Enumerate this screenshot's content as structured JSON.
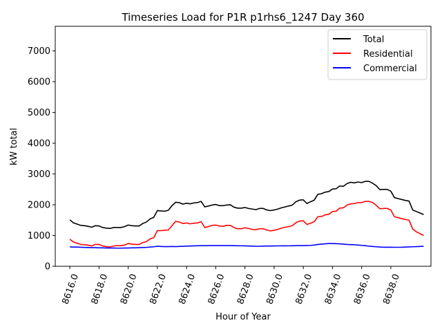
{
  "chart_data": {
    "type": "line",
    "title": "Timeseries Load for P1R p1rhs6_1247  Day 360",
    "xlabel": "Hour of Year",
    "ylabel": "kW total",
    "xlim": [
      8615.0,
      8640.75
    ],
    "ylim": [
      0,
      7800
    ],
    "xticks": [
      8616,
      8618,
      8620,
      8622,
      8624,
      8626,
      8628,
      8630,
      8632,
      8634,
      8636,
      8638
    ],
    "xtick_labels": [
      "8616.0",
      "8618.0",
      "8620.0",
      "8622.0",
      "8624.0",
      "8626.0",
      "8628.0",
      "8630.0",
      "8632.0",
      "8634.0",
      "8636.0",
      "8638.0"
    ],
    "yticks": [
      0,
      1000,
      2000,
      3000,
      4000,
      5000,
      6000,
      7000
    ],
    "ytick_labels": [
      "0",
      "1000",
      "2000",
      "3000",
      "4000",
      "5000",
      "6000",
      "7000"
    ],
    "legend_position": "top-right",
    "x_start": 8616.0,
    "x_step": 0.25,
    "series": [
      {
        "name": "Total",
        "color": "#000000",
        "values": [
          1510,
          1410,
          1370,
          1330,
          1320,
          1300,
          1270,
          1320,
          1310,
          1260,
          1240,
          1230,
          1260,
          1260,
          1260,
          1290,
          1340,
          1320,
          1310,
          1310,
          1390,
          1440,
          1540,
          1590,
          1810,
          1800,
          1790,
          1820,
          1970,
          2080,
          2070,
          2020,
          2050,
          2030,
          2060,
          2070,
          2110,
          1930,
          1960,
          1990,
          2010,
          1970,
          1970,
          1990,
          2000,
          1920,
          1890,
          1890,
          1910,
          1880,
          1860,
          1840,
          1880,
          1880,
          1830,
          1810,
          1830,
          1860,
          1900,
          1930,
          1960,
          1990,
          2100,
          2150,
          2160,
          2040,
          2100,
          2150,
          2340,
          2360,
          2410,
          2430,
          2510,
          2520,
          2610,
          2600,
          2690,
          2730,
          2710,
          2740,
          2720,
          2760,
          2760,
          2700,
          2620,
          2490,
          2500,
          2500,
          2440,
          2230,
          2200,
          2170,
          2140,
          2120,
          1830,
          1780,
          1730,
          1680
        ]
      },
      {
        "name": "Residential",
        "color": "#ff0000",
        "values": [
          880,
          790,
          750,
          710,
          700,
          690,
          660,
          710,
          710,
          660,
          640,
          630,
          660,
          670,
          670,
          690,
          740,
          720,
          710,
          710,
          770,
          800,
          890,
          930,
          1160,
          1160,
          1170,
          1180,
          1320,
          1460,
          1440,
          1390,
          1410,
          1380,
          1400,
          1410,
          1450,
          1260,
          1290,
          1330,
          1340,
          1310,
          1300,
          1330,
          1330,
          1260,
          1220,
          1220,
          1250,
          1230,
          1200,
          1190,
          1220,
          1220,
          1180,
          1150,
          1170,
          1200,
          1240,
          1270,
          1290,
          1320,
          1420,
          1470,
          1480,
          1360,
          1400,
          1450,
          1610,
          1620,
          1670,
          1690,
          1780,
          1790,
          1890,
          1900,
          1990,
          2030,
          2040,
          2070,
          2070,
          2110,
          2110,
          2070,
          1980,
          1870,
          1880,
          1880,
          1830,
          1610,
          1580,
          1550,
          1520,
          1500,
          1210,
          1120,
          1060,
          1000
        ]
      },
      {
        "name": "Commercial",
        "color": "#0000ff",
        "values": [
          630,
          625,
          625,
          620,
          615,
          610,
          605,
          605,
          600,
          600,
          595,
          595,
          595,
          590,
          590,
          595,
          595,
          600,
          600,
          605,
          610,
          615,
          625,
          635,
          650,
          645,
          640,
          640,
          645,
          640,
          645,
          650,
          655,
          660,
          665,
          668,
          670,
          670,
          672,
          672,
          672,
          672,
          672,
          672,
          672,
          670,
          668,
          666,
          664,
          660,
          655,
          652,
          652,
          655,
          658,
          660,
          662,
          663,
          664,
          665,
          666,
          668,
          670,
          672,
          674,
          676,
          680,
          690,
          710,
          720,
          730,
          740,
          740,
          735,
          730,
          720,
          710,
          705,
          700,
          690,
          680,
          670,
          655,
          645,
          635,
          625,
          620,
          620,
          620,
          618,
          618,
          620,
          625,
          630,
          635,
          640,
          645,
          650
        ]
      }
    ]
  }
}
